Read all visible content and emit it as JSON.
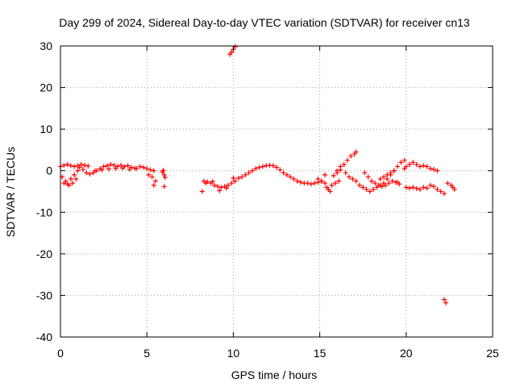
{
  "chart_data": {
    "type": "scatter",
    "title": "Day 299 of 2024, Sidereal Day-to-day VTEC variation (SDTVAR) for receiver cn13",
    "xlabel": "GPS time / hours",
    "ylabel": "SDTVAR / TECUs",
    "xlim": [
      0,
      25
    ],
    "ylim": [
      -40,
      30
    ],
    "xticks": [
      0,
      5,
      10,
      15,
      20,
      25
    ],
    "yticks": [
      -40,
      -30,
      -20,
      -10,
      0,
      10,
      20,
      30
    ],
    "grid": true,
    "marker": "plus",
    "color": "#ff0000",
    "series": [
      {
        "name": "SDTVAR",
        "x": [
          0.0,
          0.2,
          0.4,
          0.6,
          0.8,
          1.0,
          1.2,
          1.4,
          1.6,
          0.1,
          0.3,
          0.5,
          0.7,
          0.9,
          0.2,
          0.4,
          0.6,
          0.8,
          1.0,
          1.1,
          1.3,
          1.5,
          1.7,
          1.9,
          2.1,
          2.3,
          2.5,
          2.7,
          2.9,
          3.1,
          3.3,
          3.5,
          3.7,
          3.9,
          4.1,
          4.3,
          2.0,
          2.4,
          2.8,
          3.2,
          3.6,
          4.0,
          4.4,
          4.6,
          4.8,
          5.0,
          5.2,
          5.4,
          5.1,
          5.3,
          5.5,
          5.4,
          5.9,
          6.0,
          6.05,
          5.95,
          6.0,
          8.2,
          8.3,
          8.5,
          8.7,
          8.9,
          9.1,
          9.3,
          9.5,
          9.7,
          9.9,
          10.1,
          8.4,
          8.8,
          9.2,
          9.6,
          10.0,
          10.3,
          10.5,
          10.7,
          10.9,
          11.1,
          11.3,
          11.5,
          11.7,
          11.9,
          12.1,
          12.3,
          12.5,
          12.7,
          12.9,
          13.1,
          13.3,
          13.5,
          13.7,
          13.9,
          14.1,
          14.3,
          14.5,
          14.7,
          14.9,
          15.1,
          15.3,
          14.9,
          15.1,
          15.3,
          15.5,
          15.7,
          15.9,
          16.1,
          15.4,
          15.5,
          15.6,
          15.8,
          16.0,
          16.2,
          16.0,
          16.2,
          16.4,
          16.6,
          16.8,
          17.0,
          17.1,
          16.5,
          16.7,
          16.9,
          17.1,
          17.3,
          17.5,
          17.7,
          17.9,
          18.1,
          18.3,
          18.5,
          18.7,
          18.9,
          19.1,
          19.3,
          19.5,
          19.7,
          19.9,
          17.6,
          17.8,
          18.0,
          18.2,
          18.4,
          18.6,
          18.8,
          19.0,
          19.2,
          19.4,
          19.6,
          18.5,
          18.7,
          18.9,
          19.1,
          19.3,
          19.5,
          19.9,
          20.0,
          20.2,
          20.4,
          20.6,
          20.8,
          21.0,
          21.2,
          21.4,
          21.6,
          21.8,
          20.0,
          20.2,
          20.4,
          20.6,
          20.8,
          21.0,
          21.2,
          21.4,
          21.6,
          21.8,
          22.0,
          22.2,
          22.4,
          22.6,
          22.7,
          22.8,
          22.2,
          22.3,
          9.8,
          9.9,
          10.0,
          10.1
        ],
        "y": [
          1.0,
          1.3,
          1.5,
          1.2,
          1.0,
          1.2,
          1.5,
          1.3,
          1.1,
          -1.5,
          -2.5,
          -3.5,
          -3.0,
          -2.0,
          -3.0,
          -3.2,
          -2.0,
          -1.0,
          0.0,
          0.8,
          0.3,
          -0.5,
          -0.8,
          -0.5,
          0.0,
          0.5,
          1.0,
          1.2,
          1.5,
          1.3,
          1.0,
          1.3,
          1.0,
          1.2,
          0.8,
          0.6,
          0.0,
          0.2,
          0.4,
          0.5,
          0.6,
          0.3,
          0.5,
          1.0,
          0.8,
          0.5,
          0.2,
          0.0,
          -1.0,
          -1.5,
          -2.5,
          -3.5,
          -0.3,
          -1.0,
          -1.6,
          0.1,
          -3.8,
          -5.0,
          -2.5,
          -2.7,
          -3.0,
          -3.5,
          -3.8,
          -4.0,
          -3.8,
          -3.5,
          -3.0,
          -2.5,
          -3.0,
          -2.6,
          -4.8,
          -4.2,
          -1.8,
          -1.8,
          -1.5,
          -1.0,
          -0.5,
          0.0,
          0.5,
          0.8,
          1.0,
          1.2,
          1.3,
          1.2,
          0.8,
          0.2,
          -0.5,
          -1.0,
          -1.5,
          -2.0,
          -2.5,
          -2.8,
          -3.0,
          -3.0,
          -3.2,
          -3.0,
          -2.8,
          -2.5,
          -1.0,
          -2.0,
          -2.5,
          -3.0,
          -4.5,
          -3.5,
          -3.0,
          -2.5,
          -4.0,
          -4.5,
          -5.0,
          -1.2,
          -0.5,
          0.2,
          0.0,
          1.0,
          1.5,
          2.5,
          3.5,
          4.0,
          4.5,
          -0.5,
          -1.5,
          -2.0,
          -2.5,
          -3.5,
          -4.0,
          -4.5,
          -5.0,
          -4.5,
          -4.0,
          -3.5,
          -3.0,
          -2.0,
          -1.0,
          0.0,
          1.0,
          2.0,
          2.5,
          -0.5,
          -1.5,
          -2.5,
          -3.0,
          -3.5,
          -3.8,
          -3.5,
          -3.0,
          -2.5,
          -2.8,
          -3.2,
          -2.0,
          -1.5,
          -1.0,
          -0.5,
          0.0,
          -2.8,
          0.5,
          1.0,
          1.5,
          2.0,
          1.5,
          1.0,
          1.2,
          1.0,
          0.5,
          0.3,
          0.0,
          -4.0,
          -4.2,
          -4.0,
          -4.3,
          -4.5,
          -4.0,
          -4.2,
          -3.5,
          -3.8,
          -4.5,
          -5.0,
          -5.5,
          -3.0,
          -3.5,
          -4.0,
          -4.5,
          -31.0,
          -31.8,
          28.0,
          28.5,
          29.2,
          29.8
        ]
      }
    ]
  }
}
